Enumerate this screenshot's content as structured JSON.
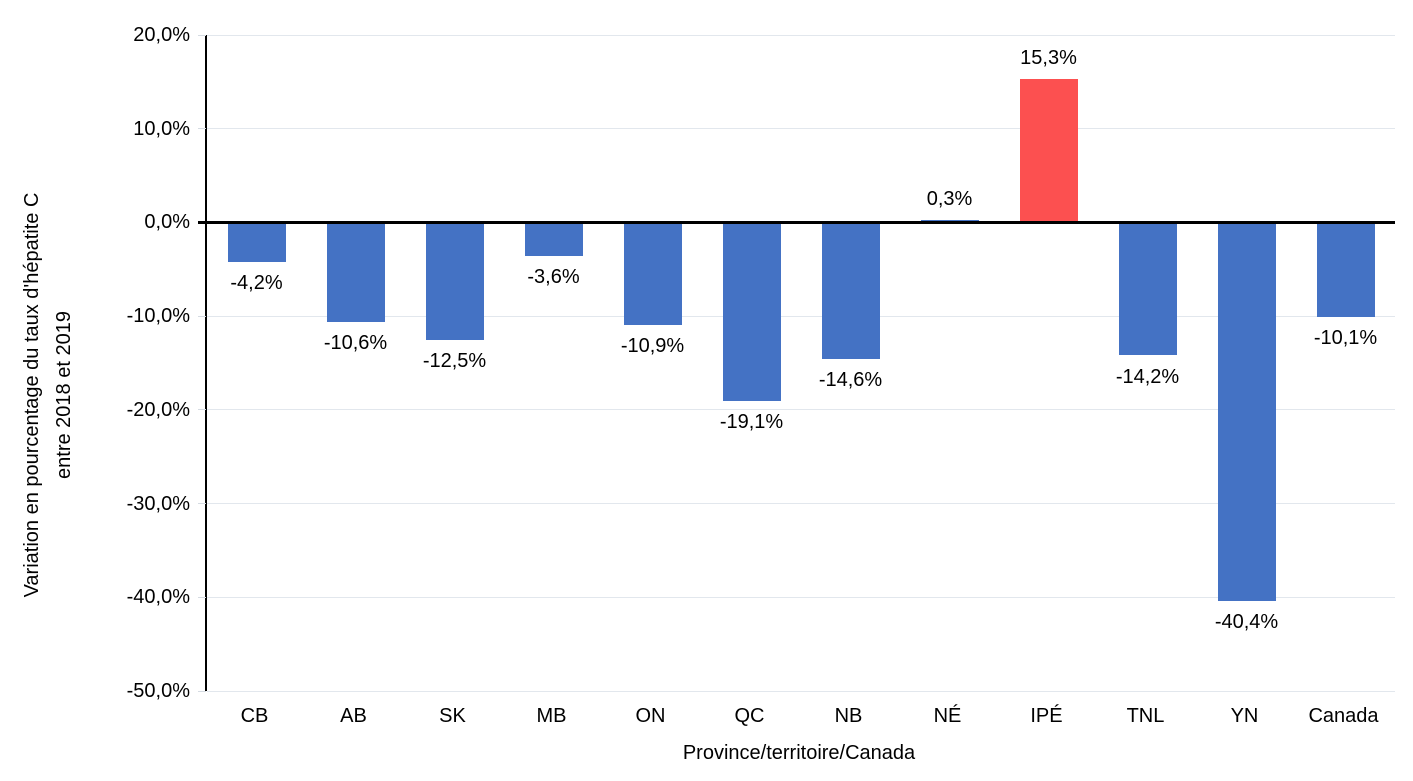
{
  "chart_data": {
    "type": "bar",
    "title": "",
    "xlabel": "Province/territoire/Canada",
    "ylabel": "Variation en pourcentage du taux d'hépatite C entre 2018 et 2019",
    "ylabel_lines": [
      "Variation en pourcentage du taux d'hépatite C",
      "entre 2018 et 2019"
    ],
    "categories": [
      "CB",
      "AB",
      "SK",
      "MB",
      "ON",
      "QC",
      "NB",
      "NÉ",
      "IPÉ",
      "TNL",
      "YN",
      "Canada"
    ],
    "values": [
      -4.2,
      -10.6,
      -12.5,
      -3.6,
      -10.9,
      -19.1,
      -14.6,
      0.3,
      15.3,
      -14.2,
      -40.4,
      -10.1
    ],
    "value_labels": [
      "-4,2%",
      "-10,6%",
      "-12,5%",
      "-3,6%",
      "-10,9%",
      "-19,1%",
      "-14,6%",
      "0,3%",
      "15,3%",
      "-14,2%",
      "-40,4%",
      "-10,1%"
    ],
    "bar_colors": [
      "#4472C4",
      "#4472C4",
      "#4472C4",
      "#4472C4",
      "#4472C4",
      "#4472C4",
      "#4472C4",
      "#4472C4",
      "#FC5050",
      "#4472C4",
      "#4472C4",
      "#4472C4"
    ],
    "ylim": [
      -50,
      20
    ],
    "y_ticks": [
      20,
      10,
      0,
      -10,
      -20,
      -30,
      -40,
      -50
    ],
    "y_tick_labels": [
      "20,0%",
      "10,0%",
      "0,0%",
      "-10,0%",
      "-20,0%",
      "-30,0%",
      "-40,0%",
      "-50,0%"
    ],
    "grid": true,
    "legend": "none",
    "colors": {
      "bar_default": "#4472C4",
      "bar_highlight": "#FC5050",
      "gridline": "#e2e7ed",
      "axis": "#000000",
      "background": "#ffffff"
    }
  }
}
